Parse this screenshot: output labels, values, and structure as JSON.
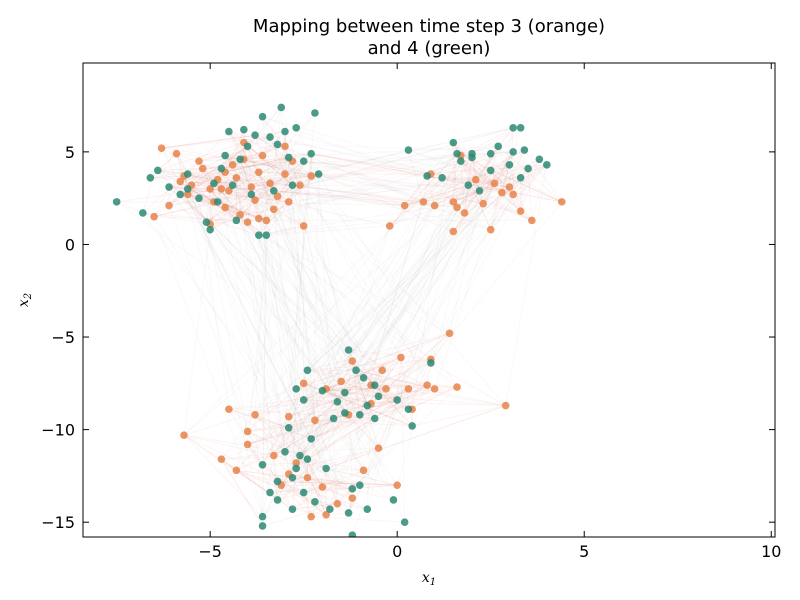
{
  "chart_data": {
    "type": "scatter",
    "title_line1": "Mapping between time step 3 (orange)",
    "title_line2": "and 4 (green)",
    "xlabel": "x",
    "xlabel_sub": "1",
    "ylabel": "x",
    "ylabel_sub": "2",
    "xlim": [
      -8.4,
      10.1
    ],
    "ylim": [
      -15.8,
      9.8
    ],
    "xticks": [
      -5,
      0,
      5,
      10
    ],
    "yticks": [
      5,
      0,
      -5,
      -10,
      -15
    ],
    "xtick_labels": [
      "−5",
      "0",
      "5",
      "10"
    ],
    "ytick_labels": [
      "5",
      "0",
      "−5",
      "−10",
      "−15"
    ],
    "grid": false,
    "colors": {
      "orange": "#e8834a",
      "green": "#2a8a74",
      "link": "#e06a50",
      "link_gray": "#b8b8b8"
    },
    "series": [
      {
        "name": "orange",
        "points": [
          [
            -6.3,
            5.2
          ],
          [
            -5.9,
            4.9
          ],
          [
            -5.7,
            3.7
          ],
          [
            -5.5,
            3.2
          ],
          [
            -5.2,
            4.1
          ],
          [
            -5.0,
            3.0
          ],
          [
            -4.8,
            3.5
          ],
          [
            -4.6,
            3.9
          ],
          [
            -4.5,
            2.9
          ],
          [
            -4.3,
            3.6
          ],
          [
            -4.1,
            4.6
          ],
          [
            -3.9,
            3.1
          ],
          [
            -3.7,
            3.9
          ],
          [
            -3.6,
            4.8
          ],
          [
            -3.4,
            3.3
          ],
          [
            -3.2,
            2.6
          ],
          [
            -3.0,
            3.8
          ],
          [
            -2.8,
            4.5
          ],
          [
            -2.6,
            3.2
          ],
          [
            -2.3,
            3.7
          ],
          [
            -4.9,
            2.3
          ],
          [
            -4.6,
            2.0
          ],
          [
            -4.2,
            1.6
          ],
          [
            -4.0,
            1.2
          ],
          [
            -3.7,
            1.4
          ],
          [
            -3.3,
            1.9
          ],
          [
            -6.1,
            2.1
          ],
          [
            -6.5,
            1.5
          ],
          [
            -5.0,
            1.1
          ],
          [
            -3.5,
            1.3
          ],
          [
            -4.4,
            4.3
          ],
          [
            -5.3,
            4.5
          ],
          [
            -5.8,
            3.4
          ],
          [
            -4.7,
            3.0
          ],
          [
            -3.8,
            2.4
          ],
          [
            -2.9,
            2.3
          ],
          [
            -2.5,
            1.0
          ],
          [
            -3.0,
            5.3
          ],
          [
            -4.1,
            5.5
          ],
          [
            -5.6,
            2.7
          ],
          [
            -0.2,
            1.0
          ],
          [
            0.2,
            2.1
          ],
          [
            0.7,
            2.3
          ],
          [
            0.9,
            3.8
          ],
          [
            1.0,
            2.1
          ],
          [
            1.5,
            2.3
          ],
          [
            1.6,
            2.0
          ],
          [
            1.8,
            1.7
          ],
          [
            2.1,
            3.5
          ],
          [
            2.3,
            2.2
          ],
          [
            2.6,
            3.3
          ],
          [
            2.8,
            2.8
          ],
          [
            3.0,
            3.1
          ],
          [
            3.1,
            2.7
          ],
          [
            3.3,
            1.8
          ],
          [
            3.6,
            1.3
          ],
          [
            2.5,
            0.8
          ],
          [
            1.5,
            0.7
          ],
          [
            4.4,
            2.3
          ],
          [
            1.7,
            4.8
          ],
          [
            1.4,
            -4.8
          ],
          [
            0.9,
            -6.2
          ],
          [
            0.1,
            -6.1
          ],
          [
            -0.4,
            -6.8
          ],
          [
            -1.2,
            -6.3
          ],
          [
            -0.3,
            -7.8
          ],
          [
            -0.7,
            -7.6
          ],
          [
            -1.5,
            -7.4
          ],
          [
            -1.9,
            -7.8
          ],
          [
            -2.5,
            -7.5
          ],
          [
            0.3,
            -7.8
          ],
          [
            0.8,
            -7.6
          ],
          [
            1.0,
            -7.8
          ],
          [
            1.6,
            -7.7
          ],
          [
            0.4,
            -8.9
          ],
          [
            -0.7,
            -8.6
          ],
          [
            -1.3,
            -9.2
          ],
          [
            -2.2,
            -9.5
          ],
          [
            -2.9,
            -9.3
          ],
          [
            2.9,
            -8.7
          ],
          [
            -4.5,
            -8.9
          ],
          [
            -3.8,
            -9.2
          ],
          [
            -4.0,
            -10.1
          ],
          [
            -4.0,
            -10.8
          ],
          [
            -4.7,
            -11.6
          ],
          [
            -4.3,
            -12.2
          ],
          [
            -3.3,
            -11.4
          ],
          [
            -2.7,
            -11.8
          ],
          [
            -2.4,
            -12.6
          ],
          [
            -2.0,
            -13.1
          ],
          [
            -2.9,
            -12.4
          ],
          [
            -3.1,
            -13.0
          ],
          [
            -1.6,
            -14.0
          ],
          [
            -1.2,
            -13.7
          ],
          [
            -0.9,
            -12.2
          ],
          [
            -2.3,
            -14.7
          ],
          [
            -1.9,
            -14.6
          ],
          [
            -5.7,
            -10.3
          ],
          [
            -0.5,
            -11.0
          ],
          [
            0.0,
            -13.0
          ]
        ]
      },
      {
        "name": "green",
        "points": [
          [
            -7.5,
            2.3
          ],
          [
            -6.8,
            1.7
          ],
          [
            -6.6,
            3.6
          ],
          [
            -6.4,
            4.0
          ],
          [
            -6.1,
            3.1
          ],
          [
            -5.8,
            2.7
          ],
          [
            -5.6,
            3.0
          ],
          [
            -5.3,
            2.5
          ],
          [
            -5.1,
            1.2
          ],
          [
            -5.0,
            0.8
          ],
          [
            -4.9,
            3.3
          ],
          [
            -4.7,
            4.1
          ],
          [
            -4.6,
            4.8
          ],
          [
            -4.4,
            3.2
          ],
          [
            -4.2,
            4.6
          ],
          [
            -4.0,
            5.3
          ],
          [
            -3.8,
            5.9
          ],
          [
            -3.6,
            6.9
          ],
          [
            -3.4,
            5.8
          ],
          [
            -3.2,
            5.4
          ],
          [
            -3.1,
            7.4
          ],
          [
            -2.9,
            4.7
          ],
          [
            -2.7,
            6.3
          ],
          [
            -2.5,
            4.5
          ],
          [
            -2.3,
            4.9
          ],
          [
            -2.2,
            7.1
          ],
          [
            -2.8,
            3.2
          ],
          [
            -3.3,
            2.9
          ],
          [
            -3.9,
            2.7
          ],
          [
            -4.5,
            6.1
          ],
          [
            -3.0,
            6.1
          ],
          [
            -3.7,
            0.5
          ],
          [
            -3.5,
            0.5
          ],
          [
            -4.8,
            2.3
          ],
          [
            -4.3,
            1.3
          ],
          [
            -2.1,
            3.8
          ],
          [
            -5.6,
            3.8
          ],
          [
            -4.1,
            6.2
          ],
          [
            0.3,
            5.1
          ],
          [
            0.8,
            3.7
          ],
          [
            1.5,
            5.5
          ],
          [
            1.7,
            4.5
          ],
          [
            1.9,
            3.2
          ],
          [
            2.0,
            4.7
          ],
          [
            2.2,
            2.9
          ],
          [
            2.5,
            4.0
          ],
          [
            2.7,
            5.3
          ],
          [
            3.0,
            4.3
          ],
          [
            3.1,
            5.0
          ],
          [
            3.3,
            3.6
          ],
          [
            3.5,
            4.1
          ],
          [
            3.8,
            4.6
          ],
          [
            4.0,
            4.3
          ],
          [
            3.1,
            6.3
          ],
          [
            3.3,
            6.3
          ],
          [
            1.2,
            3.6
          ],
          [
            2.0,
            4.9
          ],
          [
            1.6,
            4.9
          ],
          [
            2.5,
            4.9
          ],
          [
            3.4,
            5.1
          ],
          [
            -1.3,
            -5.7
          ],
          [
            -1.1,
            -6.8
          ],
          [
            -0.9,
            -7.2
          ],
          [
            -0.6,
            -7.6
          ],
          [
            -0.5,
            -8.2
          ],
          [
            0.0,
            -8.4
          ],
          [
            0.3,
            -8.9
          ],
          [
            0.4,
            -9.8
          ],
          [
            -0.8,
            -8.7
          ],
          [
            -1.6,
            -8.5
          ],
          [
            -1.0,
            -9.2
          ],
          [
            -1.4,
            -9.1
          ],
          [
            -2.5,
            -8.4
          ],
          [
            -2.7,
            -7.8
          ],
          [
            -2.0,
            -7.9
          ],
          [
            -1.4,
            -8.0
          ],
          [
            -2.4,
            -6.8
          ],
          [
            0.9,
            -6.4
          ],
          [
            -0.6,
            -9.4
          ],
          [
            -1.7,
            -9.4
          ],
          [
            -2.3,
            -10.5
          ],
          [
            -2.9,
            -9.9
          ],
          [
            -3.0,
            -11.2
          ],
          [
            -2.6,
            -11.4
          ],
          [
            -2.7,
            -12.1
          ],
          [
            -2.8,
            -12.6
          ],
          [
            -3.2,
            -12.8
          ],
          [
            -3.6,
            -11.9
          ],
          [
            -3.4,
            -13.4
          ],
          [
            -3.2,
            -13.8
          ],
          [
            -2.5,
            -13.4
          ],
          [
            -2.2,
            -13.9
          ],
          [
            -1.8,
            -14.3
          ],
          [
            -1.2,
            -13.2
          ],
          [
            -1.0,
            -13.0
          ],
          [
            -0.8,
            -14.3
          ],
          [
            -1.3,
            -14.5
          ],
          [
            -3.6,
            -14.7
          ],
          [
            -3.6,
            -15.2
          ],
          [
            -1.2,
            -15.7
          ],
          [
            0.2,
            -15.0
          ],
          [
            -0.1,
            -13.8
          ],
          [
            -2.8,
            -14.3
          ],
          [
            -2.4,
            -11.6
          ],
          [
            -1.9,
            -12.1
          ]
        ]
      }
    ]
  }
}
